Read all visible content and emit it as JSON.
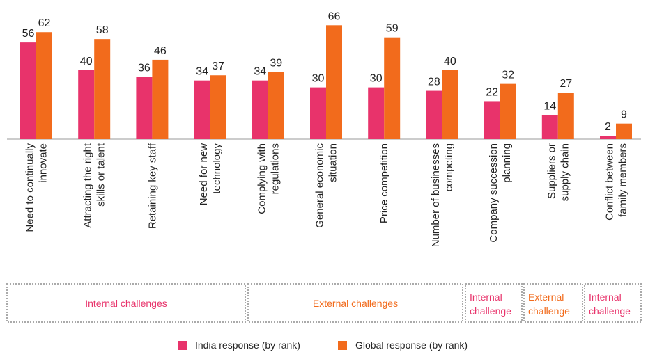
{
  "chart_data": {
    "type": "bar",
    "categories": [
      [
        "Need to continually",
        "innovate"
      ],
      [
        "Attracting the right",
        "skills or talent"
      ],
      [
        "Retaining key staff"
      ],
      [
        "Need for new",
        "technology"
      ],
      [
        "Complying with",
        "regulations"
      ],
      [
        "General economic",
        "situation"
      ],
      [
        "Price competition"
      ],
      [
        "Number of businesses",
        "competing"
      ],
      [
        "Company succession",
        "planning"
      ],
      [
        "Suppliers or",
        "supply chain"
      ],
      [
        "Conflict between",
        "family members"
      ]
    ],
    "series": [
      {
        "name": "India response (by rank)",
        "color": "#e8336b",
        "values": [
          56,
          40,
          36,
          34,
          34,
          30,
          30,
          28,
          22,
          14,
          2
        ]
      },
      {
        "name": "Global response (by rank)",
        "color": "#f26b1c",
        "values": [
          62,
          58,
          46,
          37,
          39,
          66,
          59,
          40,
          32,
          27,
          9
        ]
      }
    ],
    "groups": [
      {
        "label": [
          "Internal challenges"
        ],
        "color": "#e8336b"
      },
      {
        "label": [
          "External challenges"
        ],
        "color": "#f26b1c"
      },
      {
        "label": [
          "Internal",
          "challenge"
        ],
        "color": "#e8336b"
      },
      {
        "label": [
          "External",
          "challenge"
        ],
        "color": "#f26b1c"
      },
      {
        "label": [
          "Internal",
          "challenge"
        ],
        "color": "#e8336b"
      }
    ]
  }
}
